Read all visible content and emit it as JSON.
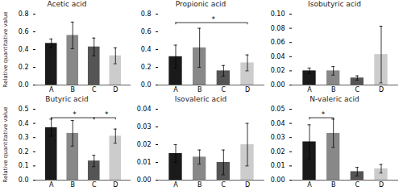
{
  "chart_data": [
    {
      "type": "bar",
      "title": "Acetic acid",
      "ylabel": "Relative quantitative value",
      "categories": [
        "A",
        "B",
        "C",
        "D"
      ],
      "values": [
        0.47,
        0.56,
        0.43,
        0.33
      ],
      "errors": [
        0.05,
        0.15,
        0.1,
        0.09
      ],
      "colors": [
        "#1a1a1a",
        "#888888",
        "#555555",
        "#cccccc"
      ],
      "ylim": [
        0.0,
        0.8
      ],
      "yticks": [
        {
          "value": 0.0,
          "label": "0.0"
        },
        0.2,
        0.4,
        0.6,
        0.8
      ]
    },
    {
      "type": "bar",
      "title": "Propionic acid",
      "categories": [
        "A",
        "B",
        "C",
        "D"
      ],
      "values": [
        0.32,
        0.42,
        0.16,
        0.25
      ],
      "errors": [
        0.13,
        0.22,
        0.06,
        0.09
      ],
      "colors": [
        "#1a1a1a",
        "#888888",
        "#555555",
        "#cccccc"
      ],
      "ylim": [
        0.0,
        0.8
      ],
      "yticks": [
        {
          "value": 0.0,
          "label": "0.0"
        },
        0.2,
        0.4,
        0.6,
        0.8
      ],
      "annotations": [
        {
          "text": "*",
          "from": "A",
          "to": "D"
        }
      ]
    },
    {
      "type": "bar",
      "title": "Isobutyric acid",
      "categories": [
        "A",
        "B",
        "C",
        "D"
      ],
      "values": [
        0.02,
        0.02,
        0.01,
        0.043
      ],
      "errors": [
        0.004,
        0.006,
        0.003,
        0.04
      ],
      "colors": [
        "#1a1a1a",
        "#888888",
        "#555555",
        "#cccccc"
      ],
      "ylim": [
        0.0,
        0.1
      ],
      "yticks": [
        {
          "value": 0.0,
          "label": "0.00"
        },
        0.02,
        0.04,
        0.06,
        0.08,
        {
          "value": 0.1,
          "label": "0.10"
        }
      ]
    },
    {
      "type": "bar",
      "title": "Butyric acid",
      "ylabel": "Relative quantitative value",
      "categories": [
        "A",
        "B",
        "C",
        "D"
      ],
      "values": [
        0.37,
        0.33,
        0.135,
        0.31
      ],
      "errors": [
        0.06,
        0.09,
        0.04,
        0.05
      ],
      "colors": [
        "#1a1a1a",
        "#888888",
        "#555555",
        "#cccccc"
      ],
      "ylim": [
        0.0,
        0.5
      ],
      "yticks": [
        {
          "value": 0.0,
          "label": "0.0"
        },
        0.1,
        0.2,
        0.3,
        0.4,
        0.5
      ],
      "annotations": [
        {
          "text": "*",
          "from": "A",
          "to": "C"
        },
        {
          "text": "*",
          "from": "C",
          "to": "D"
        }
      ]
    },
    {
      "type": "bar",
      "title": "Isovaleric acid",
      "categories": [
        "A",
        "B",
        "C",
        "D"
      ],
      "values": [
        0.015,
        0.013,
        0.01,
        0.02
      ],
      "errors": [
        0.005,
        0.004,
        0.007,
        0.012
      ],
      "colors": [
        "#1a1a1a",
        "#888888",
        "#555555",
        "#cccccc"
      ],
      "ylim": [
        0.0,
        0.04
      ],
      "yticks": [
        {
          "value": 0.0,
          "label": "0.00"
        },
        0.01,
        0.02,
        0.03,
        0.04
      ]
    },
    {
      "type": "bar",
      "title": "N-valeric acid",
      "categories": [
        "A",
        "B",
        "C",
        "D"
      ],
      "values": [
        0.027,
        0.033,
        0.006,
        0.008
      ],
      "errors": [
        0.012,
        0.01,
        0.003,
        0.003
      ],
      "colors": [
        "#1a1a1a",
        "#888888",
        "#555555",
        "#cccccc"
      ],
      "ylim": [
        0.0,
        0.05
      ],
      "yticks": [
        {
          "value": 0.0,
          "label": "0.00"
        },
        0.01,
        0.02,
        0.03,
        0.04,
        0.05
      ],
      "annotations": [
        {
          "text": "*",
          "from": "A",
          "to": "B"
        }
      ]
    }
  ]
}
